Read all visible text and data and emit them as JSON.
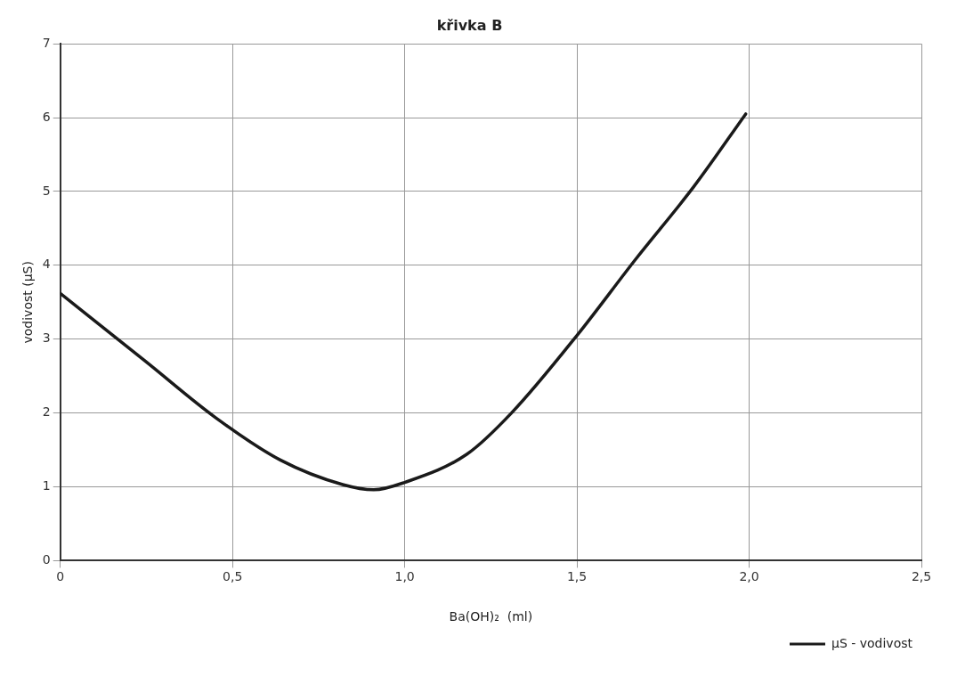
{
  "chart_data": {
    "type": "line",
    "title": "křivka B",
    "xlabel": "Ba(OH)₂  (ml)",
    "ylabel": "vodivost (µS)",
    "x": [
      0,
      0.25,
      0.45,
      0.64,
      0.82,
      0.91,
      1.0,
      1.18,
      1.31,
      1.5,
      1.67,
      1.84,
      1.99
    ],
    "series": [
      {
        "name": "µS - vodivost",
        "color": "#1a1a1a",
        "values": [
          3.62,
          2.69,
          1.94,
          1.36,
          1.03,
          0.96,
          1.06,
          1.44,
          2.0,
          3.05,
          4.08,
          5.07,
          6.05
        ]
      }
    ],
    "xlim": [
      0,
      2.5
    ],
    "xticks": [
      {
        "value": 0,
        "label": "0"
      },
      {
        "value": 0.5,
        "label": "0,5"
      },
      {
        "value": 1,
        "label": "1,0"
      },
      {
        "value": 1.5,
        "label": "1,5"
      },
      {
        "value": 2,
        "label": "2,0"
      },
      {
        "value": 2.5,
        "label": "2,5"
      }
    ],
    "ylim": [
      0,
      7
    ],
    "yticks": [
      0,
      1,
      2,
      3,
      4,
      5,
      6,
      7
    ],
    "grid": true,
    "legend": "bottom right",
    "marker": "none",
    "line_style": "solid"
  }
}
